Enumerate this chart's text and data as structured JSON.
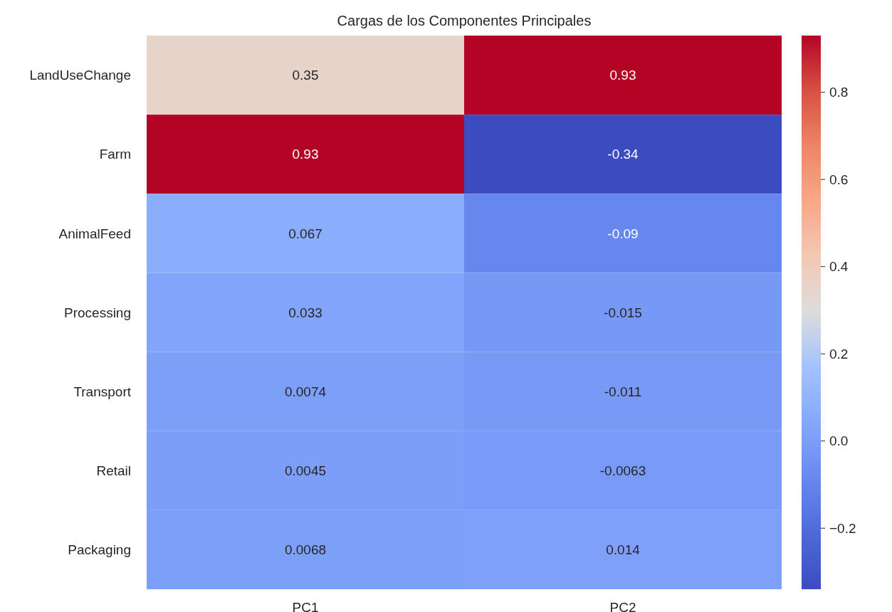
{
  "chart_data": {
    "type": "heatmap",
    "title": "Cargas de los Componentes Principales",
    "categories": [
      "PC1",
      "PC2"
    ],
    "y_categories": [
      "LandUseChange",
      "Farm",
      "AnimalFeed",
      "Processing",
      "Transport",
      "Retail",
      "Packaging"
    ],
    "cells": [
      [
        0.35,
        0.93
      ],
      [
        0.93,
        -0.34
      ],
      [
        0.067,
        -0.09
      ],
      [
        0.033,
        -0.015
      ],
      [
        0.0074,
        -0.011
      ],
      [
        0.0045,
        -0.0063
      ],
      [
        0.0068,
        0.014
      ]
    ],
    "data_labels": true,
    "clim": [
      -0.34,
      0.93
    ],
    "cticks": [
      {
        "value": -0.2,
        "label": "−0.2"
      },
      {
        "value": 0,
        "label": "0.0"
      },
      {
        "value": 0.2,
        "label": "0.2"
      },
      {
        "value": 0.4,
        "label": "0.4"
      },
      {
        "value": 0.6,
        "label": "0.6"
      },
      {
        "value": 0.8,
        "label": "0.8"
      }
    ]
  }
}
